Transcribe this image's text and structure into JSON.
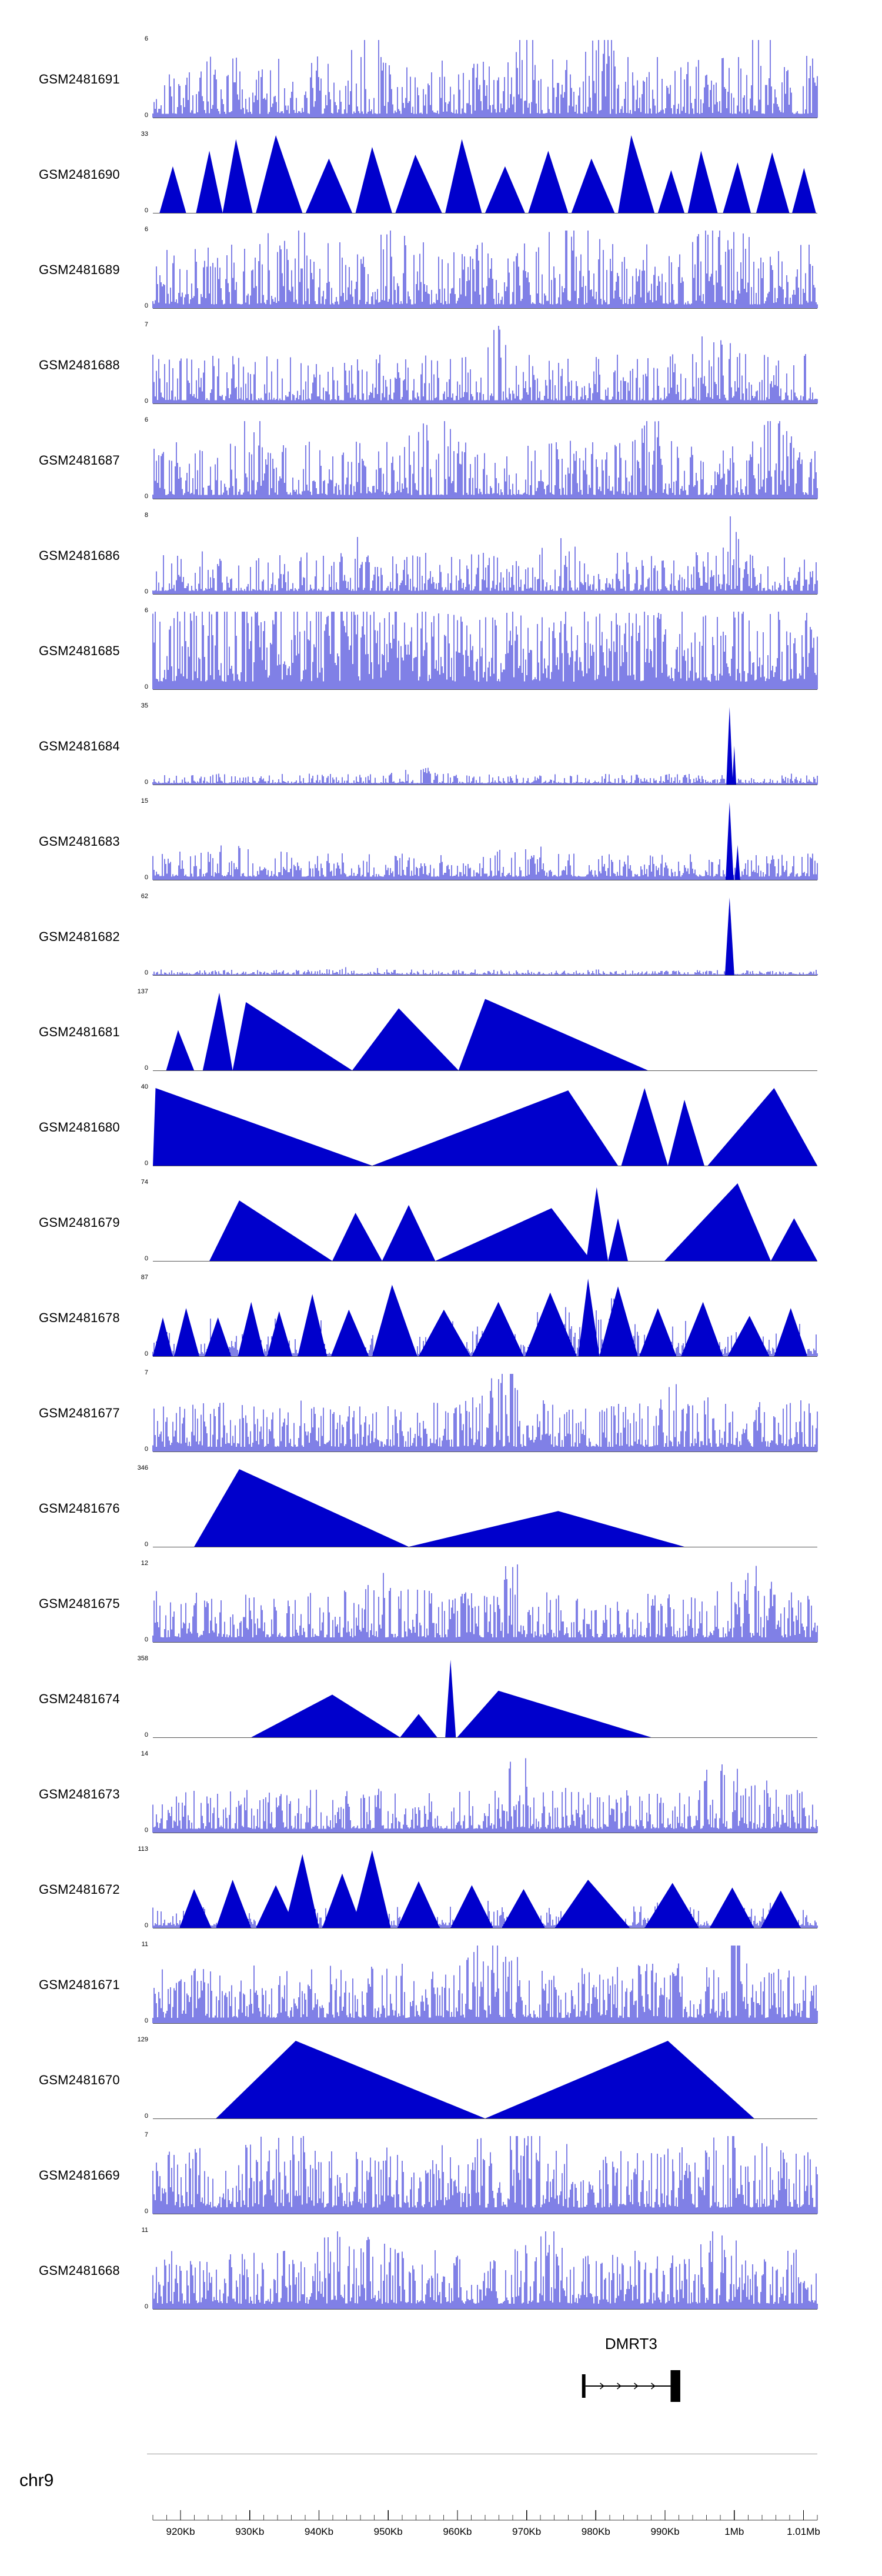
{
  "chrom": "chr9",
  "chart_data": {
    "type": "area",
    "title": "",
    "chrom": "chr9",
    "yzero": "0",
    "colors": {
      "signal": "#0000cc",
      "gene": "#000000",
      "axis": "#444444",
      "separator": "#9a9a9a"
    },
    "axis": {
      "domain_kb": [
        916,
        1012
      ],
      "minor_step_kb": 2,
      "major_ticks": [
        [
          920,
          "920Kb"
        ],
        [
          930,
          "930Kb"
        ],
        [
          940,
          "940Kb"
        ],
        [
          950,
          "950Kb"
        ],
        [
          960,
          "960Kb"
        ],
        [
          970,
          "970Kb"
        ],
        [
          980,
          "980Kb"
        ],
        [
          990,
          "990Kb"
        ],
        [
          1000,
          "1Mb"
        ],
        [
          1010,
          "1.01Mb"
        ]
      ]
    },
    "gene": {
      "name": "DMRT3",
      "start_kb": 978.0,
      "end_kb": 992.2,
      "left_exon_kb": [
        978.0,
        978.5
      ],
      "right_exon_kb": [
        990.8,
        992.2
      ],
      "arrow_count": 4,
      "direction": "right"
    },
    "tracks": [
      {
        "label": "GSM2481691",
        "ymax": "6",
        "bars": {
          "seed": 101,
          "base": 0.05,
          "amp": 0.75,
          "pow": 2.6,
          "spike_prob": 0.05,
          "spike_amp": 1.0,
          "bumps": [
            [
              0.33,
              0.015,
              1.2
            ],
            [
              0.56,
              0.012,
              0.8
            ],
            [
              0.68,
              0.015,
              1.0
            ],
            [
              0.92,
              0.02,
              0.6
            ]
          ]
        }
      },
      {
        "label": "GSM2481690",
        "ymax": "33",
        "tris": [
          [
            0.01,
            0.03,
            0.05,
            0.6
          ],
          [
            0.065,
            0.085,
            0.105,
            0.8
          ],
          [
            0.105,
            0.125,
            0.15,
            0.95
          ],
          [
            0.155,
            0.185,
            0.225,
            1.0
          ],
          [
            0.23,
            0.265,
            0.3,
            0.7
          ],
          [
            0.305,
            0.33,
            0.36,
            0.85
          ],
          [
            0.365,
            0.395,
            0.435,
            0.75
          ],
          [
            0.44,
            0.465,
            0.495,
            0.95
          ],
          [
            0.5,
            0.53,
            0.56,
            0.6
          ],
          [
            0.565,
            0.595,
            0.625,
            0.8
          ],
          [
            0.63,
            0.66,
            0.695,
            0.7
          ],
          [
            0.7,
            0.72,
            0.755,
            1.0
          ],
          [
            0.76,
            0.78,
            0.8,
            0.55
          ],
          [
            0.805,
            0.825,
            0.85,
            0.8
          ],
          [
            0.858,
            0.88,
            0.9,
            0.65
          ],
          [
            0.908,
            0.932,
            0.958,
            0.78
          ],
          [
            0.962,
            0.98,
            0.998,
            0.58
          ]
        ]
      },
      {
        "label": "GSM2481689",
        "ymax": "6",
        "bars": {
          "seed": 103,
          "base": 0.05,
          "amp": 0.8,
          "pow": 2.4,
          "spike_prob": 0.06,
          "spike_amp": 1.0,
          "bumps": [
            [
              0.2,
              0.02,
              0.8
            ],
            [
              0.37,
              0.015,
              1.0
            ],
            [
              0.63,
              0.02,
              0.7
            ],
            [
              0.86,
              0.02,
              0.9
            ]
          ]
        }
      },
      {
        "label": "GSM2481688",
        "ymax": "7",
        "bars": {
          "seed": 104,
          "base": 0.04,
          "amp": 0.6,
          "pow": 3.0,
          "spike_prob": 0.04,
          "spike_amp": 1.0,
          "bumps": [
            [
              0.52,
              0.01,
              1.5
            ],
            [
              0.85,
              0.02,
              0.9
            ]
          ]
        }
      },
      {
        "label": "GSM2481687",
        "ymax": "6",
        "bars": {
          "seed": 105,
          "base": 0.05,
          "amp": 0.7,
          "pow": 2.8,
          "spike_prob": 0.05,
          "spike_amp": 1.0,
          "bumps": [
            [
              0.15,
              0.015,
              0.9
            ],
            [
              0.42,
              0.02,
              0.7
            ],
            [
              0.75,
              0.02,
              0.8
            ],
            [
              0.93,
              0.015,
              0.9
            ]
          ]
        }
      },
      {
        "label": "GSM2481686",
        "ymax": "8",
        "bars": {
          "seed": 106,
          "base": 0.04,
          "amp": 0.5,
          "pow": 3.0,
          "spike_prob": 0.03,
          "spike_amp": 0.9,
          "bumps": [
            [
              0.3,
              0.01,
              0.9
            ],
            [
              0.6,
              0.02,
              0.5
            ],
            [
              0.87,
              0.006,
              2.5
            ]
          ]
        }
      },
      {
        "label": "GSM2481685",
        "ymax": "6",
        "bars": {
          "seed": 107,
          "base": 0.1,
          "amp": 0.95,
          "pow": 1.8,
          "spike_prob": 0.1,
          "spike_amp": 1.0,
          "bumps": [
            [
              0.15,
              0.05,
              0.7
            ],
            [
              0.3,
              0.04,
              0.5
            ],
            [
              0.87,
              0.01,
              0.8
            ]
          ]
        }
      },
      {
        "label": "GSM2481684",
        "ymax": "35",
        "bars": {
          "seed": 108,
          "base": 0.02,
          "amp": 0.12,
          "pow": 3.0,
          "spike_prob": 0.008,
          "spike_amp": 0.25,
          "bumps": [
            [
              0.4,
              0.02,
              1.0
            ]
          ]
        },
        "spikes": [
          [
            0.868,
            0.005,
            1.0
          ],
          [
            0.875,
            0.003,
            0.5
          ]
        ]
      },
      {
        "label": "GSM2481683",
        "ymax": "15",
        "bars": {
          "seed": 109,
          "base": 0.04,
          "amp": 0.3,
          "pow": 2.6,
          "spike_prob": 0.02,
          "spike_amp": 0.5,
          "bumps": [
            [
              0.1,
              0.05,
              0.5
            ],
            [
              0.55,
              0.03,
              0.6
            ]
          ]
        },
        "spikes": [
          [
            0.868,
            0.006,
            1.0
          ],
          [
            0.88,
            0.004,
            0.45
          ]
        ]
      },
      {
        "label": "GSM2481682",
        "ymax": "62",
        "bars": {
          "seed": 110,
          "base": 0.012,
          "amp": 0.06,
          "pow": 3.0,
          "spike_prob": 0.004,
          "spike_amp": 0.15,
          "bumps": [
            [
              0.3,
              0.03,
              1.0
            ]
          ]
        },
        "spikes": [
          [
            0.868,
            0.007,
            1.0
          ]
        ]
      },
      {
        "label": "GSM2481681",
        "ymax": "137",
        "tris": [
          [
            0.02,
            0.038,
            0.062,
            0.52
          ],
          [
            0.075,
            0.1,
            0.12,
            1.0
          ],
          [
            0.12,
            0.14,
            0.3,
            0.88
          ],
          [
            0.3,
            0.37,
            0.46,
            0.8
          ],
          [
            0.46,
            0.5,
            0.745,
            0.92
          ]
        ]
      },
      {
        "label": "GSM2481680",
        "ymax": "40",
        "tris": [
          [
            0.0,
            0.004,
            0.33,
            1.0
          ],
          [
            0.33,
            0.625,
            0.7,
            0.97
          ],
          [
            0.705,
            0.74,
            0.775,
            1.0
          ],
          [
            0.775,
            0.8,
            0.83,
            0.85
          ],
          [
            0.835,
            0.935,
            1.0,
            1.0
          ]
        ]
      },
      {
        "label": "GSM2481679",
        "ymax": "74",
        "tris": [
          [
            0.085,
            0.13,
            0.27,
            0.78
          ],
          [
            0.27,
            0.305,
            0.345,
            0.62
          ],
          [
            0.345,
            0.385,
            0.425,
            0.72
          ],
          [
            0.425,
            0.6,
            0.66,
            0.68
          ],
          [
            0.652,
            0.668,
            0.685,
            0.95
          ],
          [
            0.685,
            0.7,
            0.715,
            0.55
          ],
          [
            0.77,
            0.88,
            0.93,
            1.0
          ],
          [
            0.93,
            0.965,
            1.0,
            0.55
          ]
        ]
      },
      {
        "label": "GSM2481678",
        "ymax": "87",
        "bars": {
          "seed": 114,
          "base": 0.03,
          "amp": 0.3,
          "pow": 3.0,
          "spike_prob": 0.03,
          "spike_amp": 0.8,
          "bumps": [
            [
              0.65,
              0.05,
              1.0
            ]
          ]
        },
        "tris": [
          [
            0.0,
            0.015,
            0.03,
            0.5
          ],
          [
            0.032,
            0.05,
            0.07,
            0.62
          ],
          [
            0.078,
            0.098,
            0.118,
            0.5
          ],
          [
            0.128,
            0.148,
            0.168,
            0.7
          ],
          [
            0.172,
            0.19,
            0.21,
            0.58
          ],
          [
            0.218,
            0.24,
            0.262,
            0.8
          ],
          [
            0.268,
            0.295,
            0.325,
            0.6
          ],
          [
            0.33,
            0.36,
            0.398,
            0.92
          ],
          [
            0.4,
            0.438,
            0.478,
            0.6
          ],
          [
            0.48,
            0.52,
            0.558,
            0.7
          ],
          [
            0.56,
            0.598,
            0.638,
            0.82
          ],
          [
            0.64,
            0.655,
            0.672,
            1.0
          ],
          [
            0.672,
            0.7,
            0.73,
            0.9
          ],
          [
            0.732,
            0.76,
            0.788,
            0.62
          ],
          [
            0.795,
            0.828,
            0.858,
            0.7
          ],
          [
            0.865,
            0.898,
            0.928,
            0.52
          ],
          [
            0.935,
            0.96,
            0.985,
            0.62
          ]
        ]
      },
      {
        "label": "GSM2481677",
        "ymax": "7",
        "bars": {
          "seed": 115,
          "base": 0.06,
          "amp": 0.6,
          "pow": 2.6,
          "spike_prob": 0.05,
          "spike_amp": 1.0,
          "bumps": [
            [
              0.5,
              0.02,
              0.8
            ],
            [
              0.545,
              0.012,
              1.8
            ],
            [
              0.8,
              0.03,
              0.4
            ]
          ]
        }
      },
      {
        "label": "GSM2481676",
        "ymax": "346",
        "tris": [
          [
            0.062,
            0.13,
            0.385,
            1.0
          ],
          [
            0.385,
            0.61,
            0.8,
            0.46
          ]
        ]
      },
      {
        "label": "GSM2481675",
        "ymax": "12",
        "bars": {
          "seed": 117,
          "base": 0.06,
          "amp": 0.6,
          "pow": 2.6,
          "spike_prob": 0.05,
          "spike_amp": 1.0,
          "bumps": [
            [
              0.35,
              0.03,
              0.5
            ],
            [
              0.55,
              0.015,
              1.4
            ],
            [
              0.9,
              0.02,
              0.7
            ]
          ]
        }
      },
      {
        "label": "GSM2481674",
        "ymax": "358",
        "tris": [
          [
            0.148,
            0.27,
            0.372,
            0.55
          ],
          [
            0.372,
            0.4,
            0.428,
            0.3
          ],
          [
            0.44,
            0.448,
            0.456,
            1.0
          ],
          [
            0.458,
            0.52,
            0.75,
            0.6
          ]
        ]
      },
      {
        "label": "GSM2481673",
        "ymax": "14",
        "bars": {
          "seed": 119,
          "base": 0.05,
          "amp": 0.5,
          "pow": 2.8,
          "spike_prob": 0.04,
          "spike_amp": 1.0,
          "bumps": [
            [
              0.55,
              0.01,
              1.6
            ],
            [
              0.86,
              0.03,
              0.8
            ]
          ]
        }
      },
      {
        "label": "GSM2481672",
        "ymax": "113",
        "bars": {
          "seed": 120,
          "base": 0.03,
          "amp": 0.25,
          "pow": 3.0,
          "spike_prob": 0.02,
          "spike_amp": 0.6,
          "bumps": []
        },
        "tris": [
          [
            0.04,
            0.062,
            0.088,
            0.5
          ],
          [
            0.095,
            0.12,
            0.148,
            0.62
          ],
          [
            0.155,
            0.185,
            0.215,
            0.55
          ],
          [
            0.198,
            0.225,
            0.25,
            0.95
          ],
          [
            0.255,
            0.285,
            0.315,
            0.7
          ],
          [
            0.3,
            0.33,
            0.358,
            1.0
          ],
          [
            0.368,
            0.4,
            0.432,
            0.6
          ],
          [
            0.448,
            0.48,
            0.512,
            0.55
          ],
          [
            0.525,
            0.558,
            0.59,
            0.5
          ],
          [
            0.605,
            0.655,
            0.718,
            0.62
          ],
          [
            0.74,
            0.782,
            0.822,
            0.58
          ],
          [
            0.838,
            0.872,
            0.905,
            0.52
          ],
          [
            0.915,
            0.945,
            0.975,
            0.48
          ]
        ]
      },
      {
        "label": "GSM2481671",
        "ymax": "11",
        "bars": {
          "seed": 121,
          "base": 0.07,
          "amp": 0.7,
          "pow": 2.4,
          "spike_prob": 0.06,
          "spike_amp": 1.0,
          "bumps": [
            [
              0.5,
              0.03,
              0.5
            ],
            [
              0.872,
              0.008,
              1.6
            ]
          ]
        }
      },
      {
        "label": "GSM2481670",
        "ymax": "129",
        "tris": [
          [
            0.095,
            0.215,
            0.5,
            1.0
          ],
          [
            0.5,
            0.775,
            0.905,
            1.0
          ]
        ]
      },
      {
        "label": "GSM2481669",
        "ymax": "7",
        "bars": {
          "seed": 123,
          "base": 0.08,
          "amp": 0.8,
          "pow": 2.2,
          "spike_prob": 0.07,
          "spike_amp": 1.0,
          "bumps": [
            [
              0.2,
              0.03,
              0.4
            ],
            [
              0.55,
              0.04,
              0.4
            ],
            [
              0.87,
              0.02,
              0.6
            ]
          ]
        }
      },
      {
        "label": "GSM2481668",
        "ymax": "11",
        "bars": {
          "seed": 124,
          "base": 0.07,
          "amp": 0.7,
          "pow": 2.4,
          "spike_prob": 0.05,
          "spike_amp": 1.0,
          "bumps": [
            [
              0.3,
              0.04,
              0.4
            ],
            [
              0.6,
              0.03,
              0.5
            ],
            [
              0.85,
              0.02,
              0.5
            ]
          ]
        }
      }
    ]
  }
}
